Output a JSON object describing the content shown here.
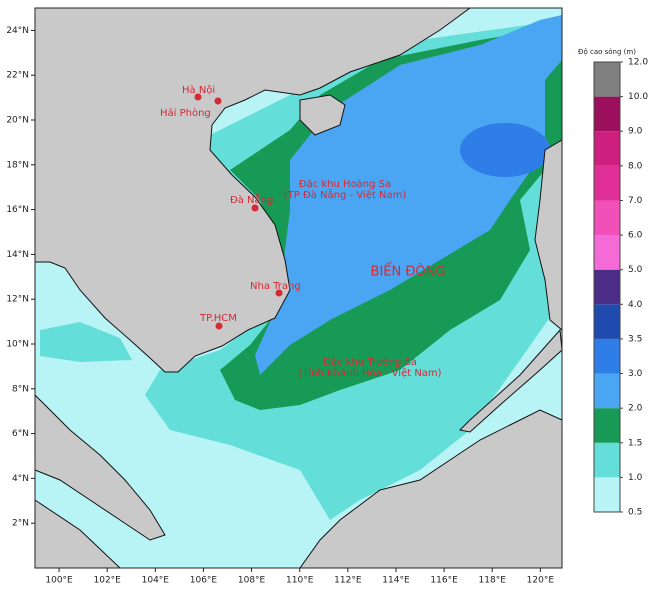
{
  "map": {
    "xlim": [
      99,
      120.9
    ],
    "ylim": [
      0,
      25
    ],
    "xticks": [
      {
        "value": 100,
        "label": "100°E"
      },
      {
        "value": 102,
        "label": "102°E"
      },
      {
        "value": 104,
        "label": "104°E"
      },
      {
        "value": 106,
        "label": "106°E"
      },
      {
        "value": 108,
        "label": "108°E"
      },
      {
        "value": 110,
        "label": "110°E"
      },
      {
        "value": 112,
        "label": "112°E"
      },
      {
        "value": 114,
        "label": "114°E"
      },
      {
        "value": 116,
        "label": "116°E"
      },
      {
        "value": 118,
        "label": "118°E"
      },
      {
        "value": 120,
        "label": "120°E"
      }
    ],
    "yticks": [
      {
        "value": 2,
        "label": "2°N"
      },
      {
        "value": 4,
        "label": "4°N"
      },
      {
        "value": 6,
        "label": "6°N"
      },
      {
        "value": 8,
        "label": "8°N"
      },
      {
        "value": 10,
        "label": "10°N"
      },
      {
        "value": 12,
        "label": "12°N"
      },
      {
        "value": 14,
        "label": "14°N"
      },
      {
        "value": 16,
        "label": "16°N"
      },
      {
        "value": 18,
        "label": "18°N"
      },
      {
        "value": 20,
        "label": "20°N"
      },
      {
        "value": 22,
        "label": "22°N"
      },
      {
        "value": 24,
        "label": "24°N"
      }
    ],
    "places": [
      "Hà Nội",
      "Hải Phòng",
      "Đà Nẵng",
      "Nha Trang",
      "TP.HCM"
    ],
    "sea_name": "BIỂN ĐÔNG",
    "hoang_sa": [
      "Đặc khu Hoàng Sa",
      "(TP Đà Nẵng - Việt Nam)"
    ],
    "truong_sa": [
      "Đặc khu Trường Sa",
      "(Tỉnh Khánh Hòa - Việt Nam)"
    ]
  },
  "colorbar": {
    "title": "Độ cao sóng (m)",
    "ticks": [
      {
        "value": 0.5,
        "label": "0.5"
      },
      {
        "value": 1,
        "label": "1.0"
      },
      {
        "value": 1.5,
        "label": "1.5"
      },
      {
        "value": 2,
        "label": "2.0"
      },
      {
        "value": 3,
        "label": "3.0"
      },
      {
        "value": 3.5,
        "label": "3.5"
      },
      {
        "value": 4,
        "label": "4.0"
      },
      {
        "value": 5,
        "label": "5.0"
      },
      {
        "value": 6,
        "label": "6.0"
      },
      {
        "value": 7,
        "label": "7.0"
      },
      {
        "value": 8,
        "label": "8.0"
      },
      {
        "value": 9,
        "label": "9.0"
      },
      {
        "value": 10,
        "label": "10.0"
      },
      {
        "value": 12,
        "label": "12.0"
      }
    ],
    "colors": [
      "#b8f3f5",
      "#63ded8",
      "#169a55",
      "#4aa6f2",
      "#2f7de6",
      "#1f4aae",
      "#4b2d88",
      "#f46ad6",
      "#f050b8",
      "#e03098",
      "#cc1f7e",
      "#9c0f5c",
      "#808080"
    ]
  }
}
